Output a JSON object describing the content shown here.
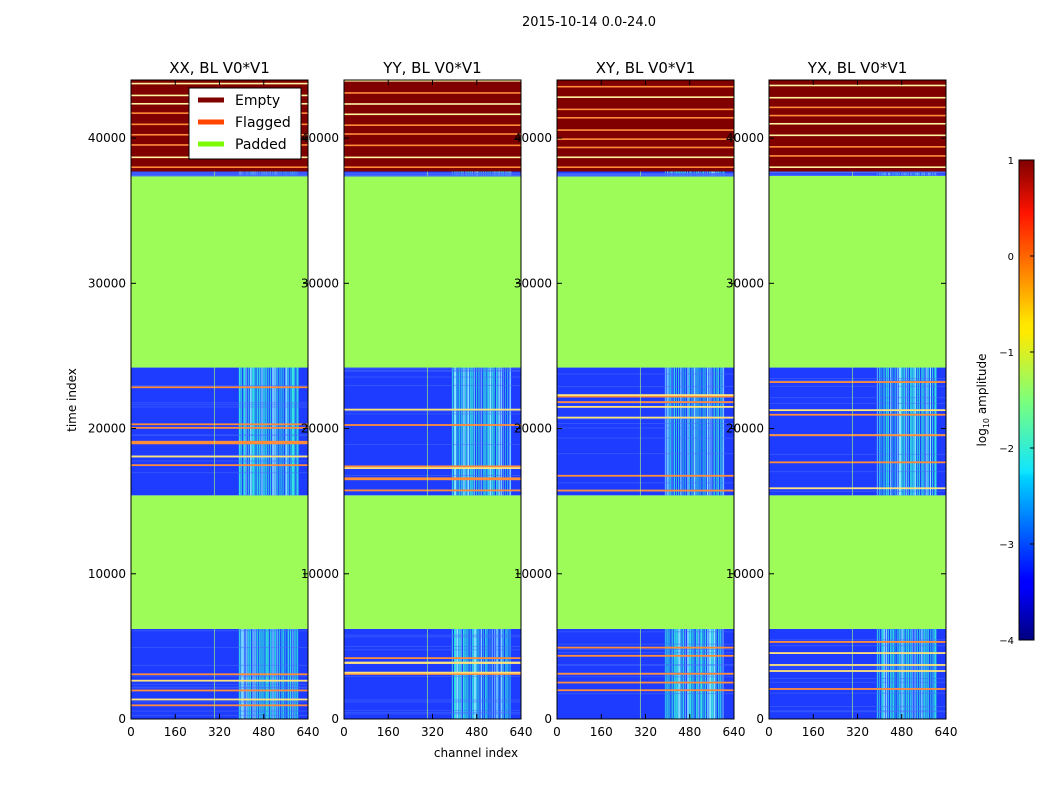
{
  "figure_title": "2015-10-14 0.0-24.0",
  "chart_data": {
    "type": "heatmap",
    "title": "2015-10-14 0.0-24.0",
    "xlabel": "channel index",
    "ylabel": "time index",
    "xlim": [
      0,
      640
    ],
    "ylim": [
      0,
      44000
    ],
    "xticks": [
      0,
      160,
      320,
      480,
      640
    ],
    "yticks": [
      0,
      10000,
      20000,
      30000,
      40000
    ],
    "panels": [
      {
        "title": "XX, BL V0*V1",
        "pol": "XX"
      },
      {
        "title": "YY, BL V0*V1",
        "pol": "YY"
      },
      {
        "title": "XY, BL V0*V1",
        "pol": "XY"
      },
      {
        "title": "YX, BL V0*V1",
        "pol": "YX"
      }
    ],
    "legend": {
      "placement": "top-right of first panel",
      "entries": [
        {
          "label": "Empty",
          "color": "#800000"
        },
        {
          "label": "Flagged",
          "color": "#ff4500"
        },
        {
          "label": "Padded",
          "color": "#7cfc00"
        }
      ]
    },
    "regions": [
      {
        "kind": "data",
        "from": 0,
        "to": 6200
      },
      {
        "kind": "padded",
        "from": 6200,
        "to": 15400
      },
      {
        "kind": "data",
        "from": 15400,
        "to": 24200
      },
      {
        "kind": "padded",
        "from": 24200,
        "to": 37400
      },
      {
        "kind": "data",
        "from": 37400,
        "to": 37700
      },
      {
        "kind": "empty",
        "from": 37700,
        "to": 44000
      }
    ],
    "bright_channel_band": [
      390,
      600
    ],
    "colorbar": {
      "label": "log10 amplitude",
      "label_main": "log",
      "label_sub": "10",
      "label_rest": " amplitude",
      "range": [
        -4,
        1
      ],
      "ticks": [
        "1",
        "0",
        "−1",
        "−2",
        "−3",
        "−4"
      ],
      "tick_values": [
        1,
        0,
        -1,
        -2,
        -3,
        -4
      ]
    },
    "colors": {
      "data_background": "#1d3cff",
      "bright_band": "#33e6e0",
      "padded": "#9dfc57",
      "empty": "#800000",
      "flag_line": "#ff8c3a"
    }
  }
}
